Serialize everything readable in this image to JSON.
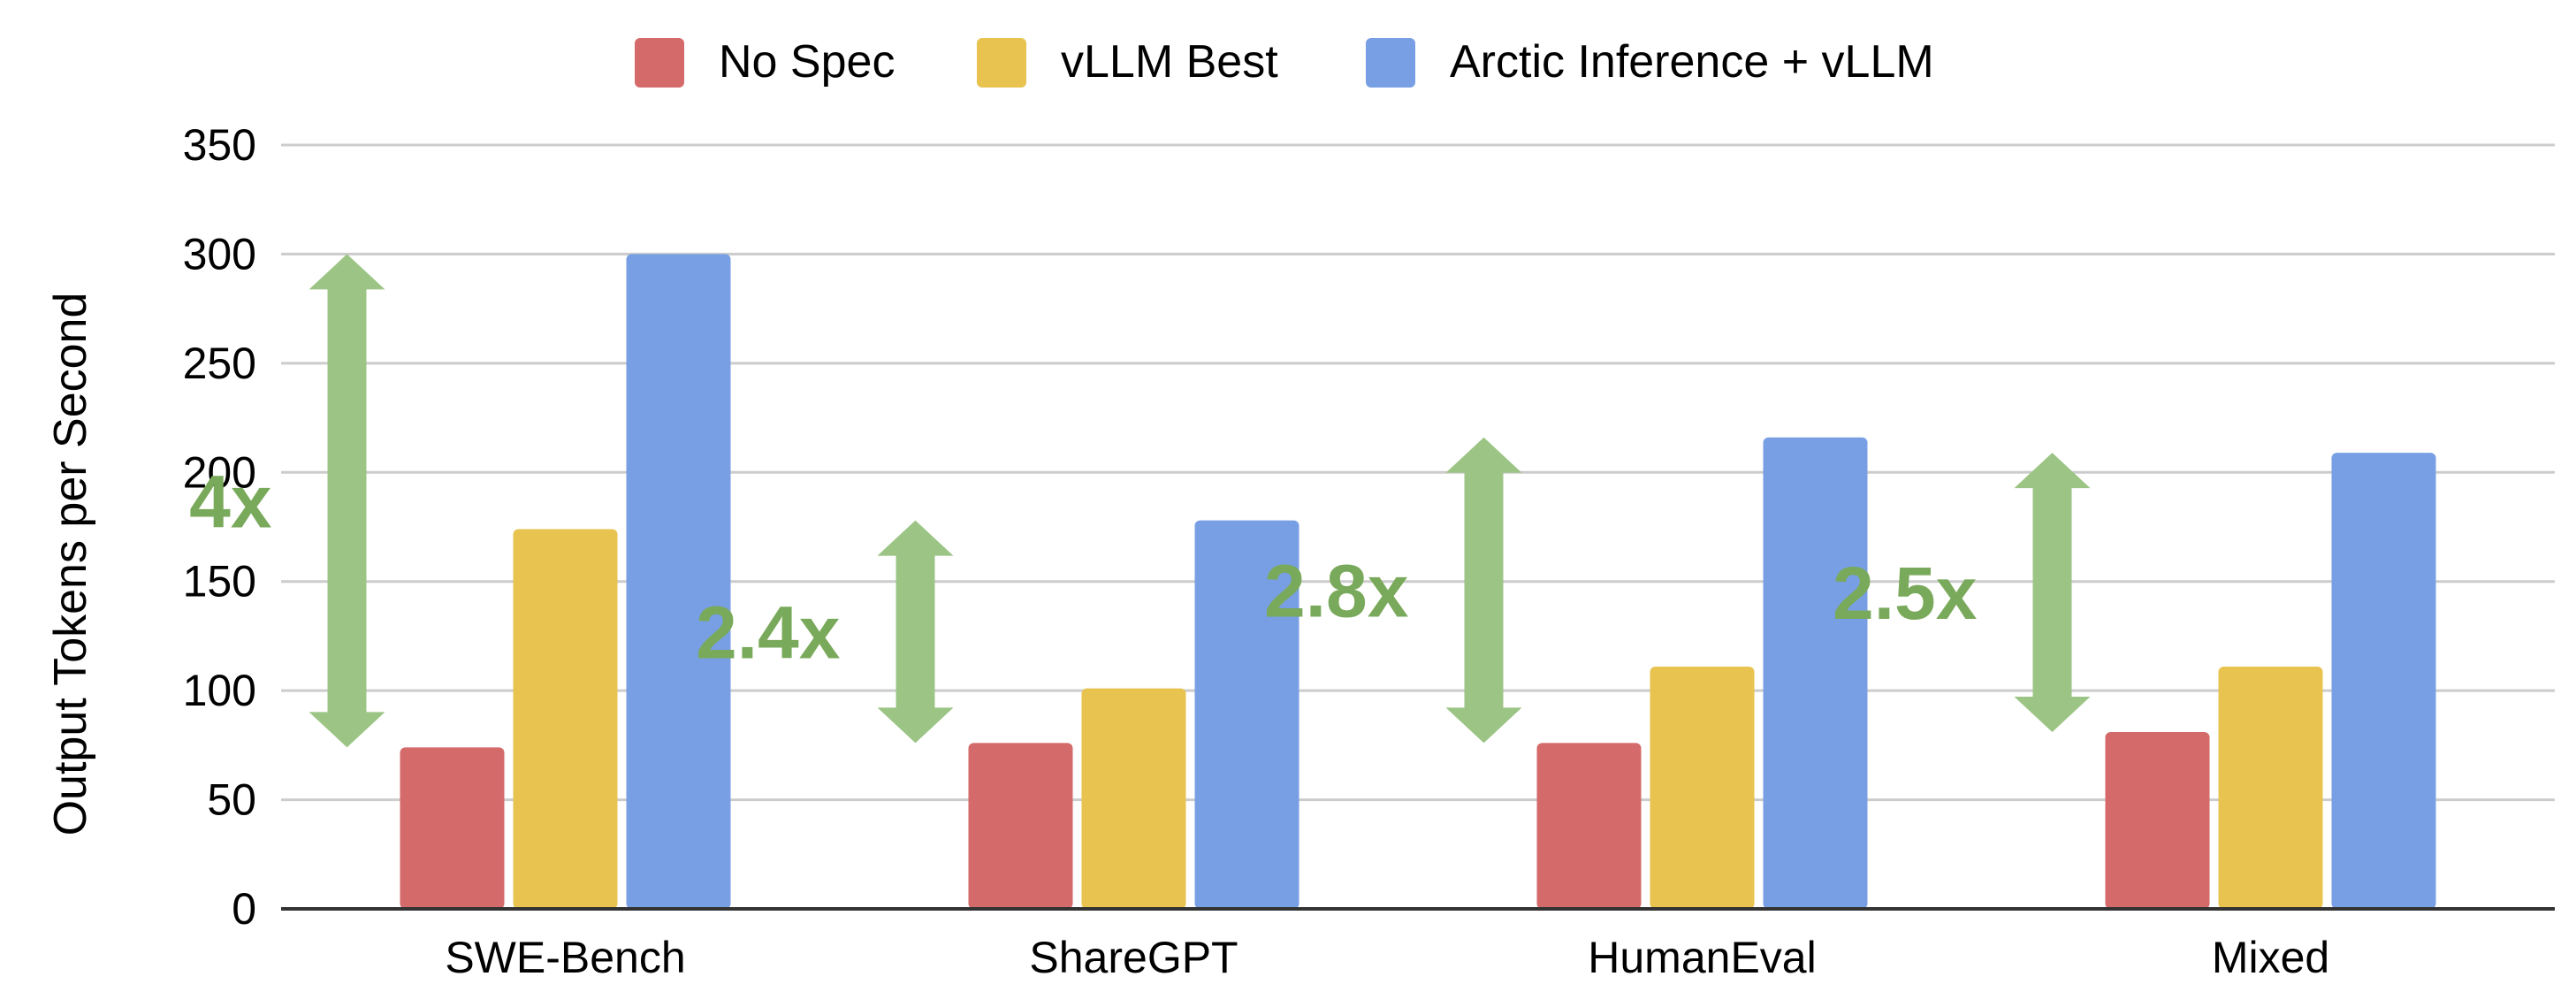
{
  "chart_data": {
    "type": "bar",
    "categories": [
      "SWE-Bench",
      "ShareGPT",
      "HumanEval",
      "Mixed"
    ],
    "series": [
      {
        "name": "No Spec",
        "color": "#d46a6a",
        "values": [
          74,
          76,
          76,
          81
        ]
      },
      {
        "name": "vLLM Best",
        "color": "#e8c34f",
        "values": [
          174,
          101,
          111,
          111
        ]
      },
      {
        "name": "Arctic Inference + vLLM",
        "color": "#789fe4",
        "values": [
          300,
          178,
          216,
          209
        ]
      }
    ],
    "title": "",
    "xlabel": "",
    "ylabel": "Output Tokens per Second",
    "ylim": [
      0,
      350
    ],
    "yticks": [
      0,
      50,
      100,
      150,
      200,
      250,
      300,
      350
    ],
    "grid": true,
    "legend_position": "top",
    "annotations": [
      {
        "text": "4x",
        "category": "SWE-Bench",
        "from": 74,
        "to": 300
      },
      {
        "text": "2.4x",
        "category": "ShareGPT",
        "from": 76,
        "to": 178
      },
      {
        "text": "2.8x",
        "category": "HumanEval",
        "from": 76,
        "to": 216
      },
      {
        "text": "2.5x",
        "category": "Mixed",
        "from": 81,
        "to": 209
      }
    ],
    "annotation_color": "#9cc585",
    "annotation_text_color": "#79a95a"
  }
}
